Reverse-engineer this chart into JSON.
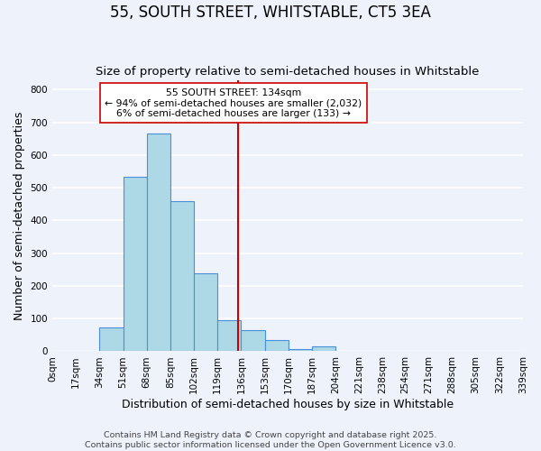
{
  "title": "55, SOUTH STREET, WHITSTABLE, CT5 3EA",
  "subtitle": "Size of property relative to semi-detached houses in Whitstable",
  "xlabel": "Distribution of semi-detached houses by size in Whitstable",
  "ylabel": "Number of semi-detached properties",
  "bin_edges": [
    0,
    17,
    34,
    51,
    68,
    85,
    102,
    119,
    136,
    153,
    170,
    187,
    204,
    221,
    238,
    254,
    271,
    288,
    305,
    322,
    339
  ],
  "bar_heights": [
    2,
    0,
    72,
    535,
    665,
    458,
    238,
    96,
    66,
    35,
    8,
    14,
    2,
    1,
    0,
    0,
    0,
    0,
    0,
    0
  ],
  "bar_color": "#add8e6",
  "bar_edge_color": "#4a90d9",
  "bar_linewidth": 0.8,
  "vline_x": 134,
  "vline_color": "#cc0000",
  "vline_linewidth": 1.5,
  "annotation_title": "55 SOUTH STREET: 134sqm",
  "annotation_line1": "← 94% of semi-detached houses are smaller (2,032)",
  "annotation_line2": "6% of semi-detached houses are larger (133) →",
  "tick_labels": [
    "0sqm",
    "17sqm",
    "34sqm",
    "51sqm",
    "68sqm",
    "85sqm",
    "102sqm",
    "119sqm",
    "136sqm",
    "153sqm",
    "170sqm",
    "187sqm",
    "204sqm",
    "221sqm",
    "238sqm",
    "254sqm",
    "271sqm",
    "288sqm",
    "305sqm",
    "322sqm",
    "339sqm"
  ],
  "footer_line1": "Contains HM Land Registry data © Crown copyright and database right 2025.",
  "footer_line2": "Contains public sector information licensed under the Open Government Licence v3.0.",
  "background_color": "#eef2fb",
  "grid_color": "#ffffff",
  "title_fontsize": 12,
  "subtitle_fontsize": 9.5,
  "axis_label_fontsize": 9,
  "tick_fontsize": 7.5,
  "footer_fontsize": 6.8,
  "xlim": [
    0,
    339
  ],
  "ylim": [
    0,
    830
  ],
  "yticks": [
    0,
    100,
    200,
    300,
    400,
    500,
    600,
    700,
    800
  ]
}
